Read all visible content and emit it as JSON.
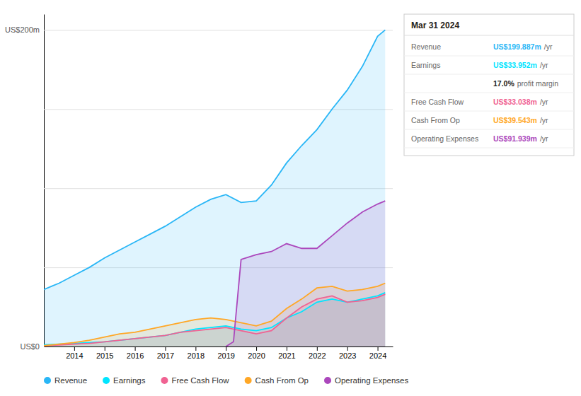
{
  "chart_data": {
    "type": "area",
    "xlim": [
      2013.0,
      2024.5
    ],
    "xticks": [
      2014,
      2015,
      2016,
      2017,
      2018,
      2019,
      2020,
      2021,
      2022,
      2023,
      2024
    ],
    "ylim": [
      0,
      210
    ],
    "yticks": [
      0,
      50,
      100,
      150,
      200
    ],
    "grid": true,
    "tick_labels": "x",
    "legend": "bottom",
    "annotations": [
      {
        "text": "US$200m",
        "y": 200
      },
      {
        "text": "US$0",
        "y": 0
      }
    ],
    "series": [
      {
        "name": "Revenue",
        "color": "#29b6f6",
        "x": [
          2013.0,
          2013.25,
          2013.5,
          2014.0,
          2014.5,
          2015.0,
          2015.5,
          2016.0,
          2016.5,
          2017.0,
          2017.5,
          2018.0,
          2018.5,
          2019.0,
          2019.5,
          2020.0,
          2020.5,
          2021.0,
          2021.5,
          2022.0,
          2022.5,
          2023.0,
          2023.5,
          2024.0,
          2024.25
        ],
        "values": [
          36,
          38,
          40,
          45,
          50,
          56,
          61,
          66,
          71,
          76,
          82,
          88,
          93,
          96,
          91,
          92,
          102,
          116,
          127,
          137,
          150,
          162,
          177,
          196,
          200
        ]
      },
      {
        "name": "Earnings",
        "color": "#00e5ff",
        "x": [
          2013.0,
          2013.5,
          2014.0,
          2014.5,
          2015.0,
          2015.5,
          2016.0,
          2016.5,
          2017.0,
          2017.5,
          2018.0,
          2018.5,
          2019.0,
          2019.5,
          2020.0,
          2020.5,
          2021.0,
          2021.5,
          2022.0,
          2022.5,
          2023.0,
          2023.5,
          2024.0,
          2024.25
        ],
        "values": [
          1,
          1.5,
          2,
          2.5,
          3,
          4,
          5,
          6,
          7,
          9,
          11,
          12,
          13,
          11,
          10,
          12,
          18,
          22,
          28,
          30,
          28,
          30,
          32,
          34
        ]
      },
      {
        "name": "Free Cash Flow",
        "color": "#f06292",
        "x": [
          2013.0,
          2013.5,
          2014.0,
          2014.5,
          2015.0,
          2015.5,
          2016.0,
          2016.5,
          2017.0,
          2017.5,
          2018.0,
          2018.5,
          2019.0,
          2019.5,
          2020.0,
          2020.5,
          2021.0,
          2021.5,
          2022.0,
          2022.5,
          2023.0,
          2023.5,
          2024.0,
          2024.25
        ],
        "values": [
          0.5,
          1,
          1.5,
          2,
          3,
          4,
          5,
          6,
          7,
          9,
          10,
          11,
          12,
          10,
          8,
          10,
          18,
          25,
          30,
          32,
          28,
          29,
          31,
          33
        ]
      },
      {
        "name": "Cash From Op",
        "color": "#ffa726",
        "x": [
          2013.0,
          2013.5,
          2014.0,
          2014.5,
          2015.0,
          2015.5,
          2016.0,
          2016.5,
          2017.0,
          2017.5,
          2018.0,
          2018.5,
          2019.0,
          2019.5,
          2020.0,
          2020.5,
          2021.0,
          2021.5,
          2022.0,
          2022.5,
          2023.0,
          2023.5,
          2024.0,
          2024.25
        ],
        "values": [
          0.5,
          1.5,
          2.5,
          4,
          6,
          8,
          9,
          11,
          13,
          15,
          17,
          18,
          17,
          15,
          13,
          16,
          24,
          30,
          37,
          38,
          35,
          36,
          38,
          40
        ]
      },
      {
        "name": "Operating Expenses",
        "color": "#ab47bc",
        "x": [
          2019.0,
          2019.25,
          2019.5,
          2020.0,
          2020.5,
          2021.0,
          2021.5,
          2022.0,
          2022.5,
          2023.0,
          2023.5,
          2024.0,
          2024.25
        ],
        "values": [
          0,
          3,
          55,
          58,
          60,
          65,
          62,
          62,
          70,
          78,
          85,
          90,
          92
        ]
      }
    ],
    "info_box": {
      "title": "Mar 31 2024",
      "rows": [
        {
          "label": "Revenue",
          "value": "US$199.887m",
          "unit": "/yr",
          "color": "#29b6f6"
        },
        {
          "label": "Earnings",
          "value": "US$33.952m",
          "unit": "/yr",
          "color": "#00e5ff"
        },
        {
          "value": "17.0%",
          "unit": "profit margin"
        },
        {
          "label": "Free Cash Flow",
          "value": "US$33.038m",
          "unit": "/yr",
          "color": "#f06292"
        },
        {
          "label": "Cash From Op",
          "value": "US$39.543m",
          "unit": "/yr",
          "color": "#ffa726"
        },
        {
          "label": "Operating Expenses",
          "value": "US$91.939m",
          "unit": "/yr",
          "color": "#ab47bc"
        }
      ]
    }
  }
}
